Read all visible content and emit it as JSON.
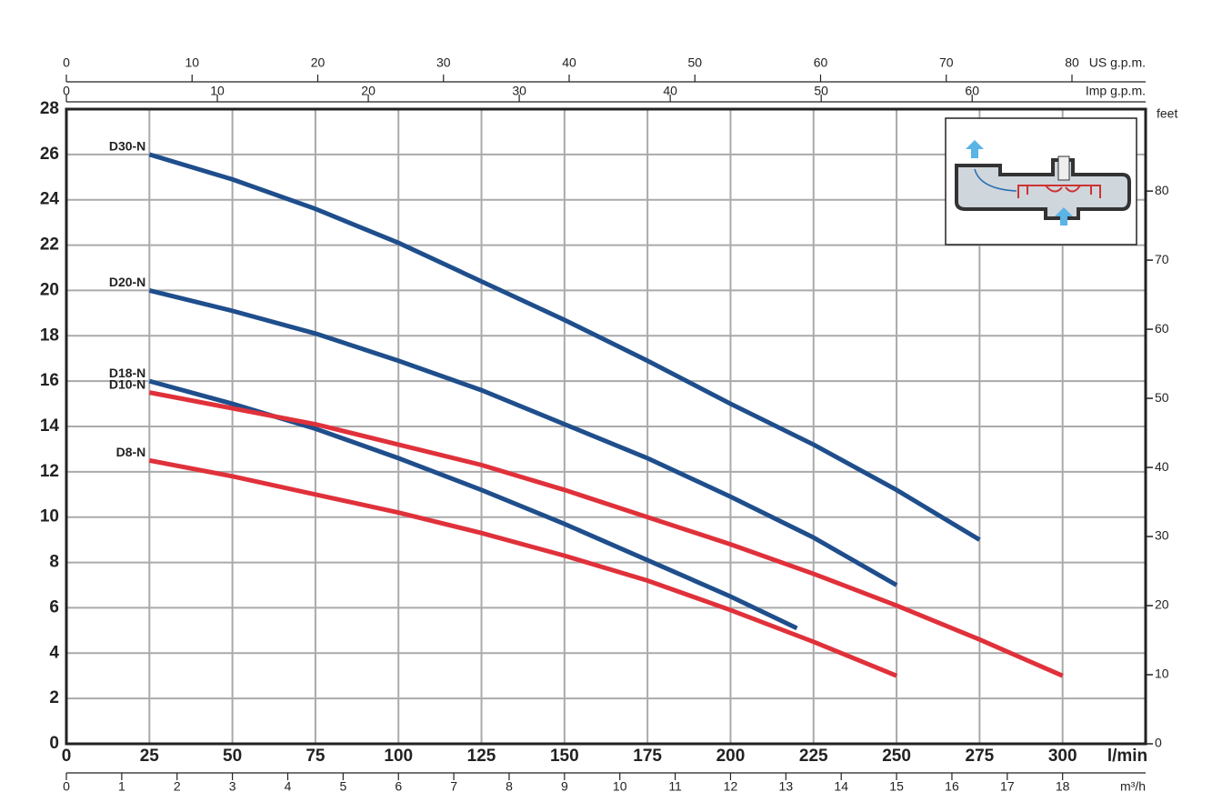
{
  "chart_data": {
    "type": "line",
    "x_label": "l/min",
    "y2_label": "feet",
    "xlim": [
      0,
      325
    ],
    "xticks": [
      0,
      25,
      50,
      75,
      100,
      125,
      150,
      175,
      200,
      225,
      250,
      275,
      300
    ],
    "ylim": [
      0,
      28
    ],
    "yticks": [
      0,
      2,
      4,
      6,
      8,
      10,
      12,
      14,
      16,
      18,
      20,
      22,
      24,
      26,
      28
    ],
    "y2lim": [
      0,
      91.86
    ],
    "y2ticks": [
      0,
      10,
      20,
      30,
      40,
      50,
      60,
      70,
      80
    ],
    "grid": true,
    "secondary_x_axes": [
      {
        "label": "m³/h",
        "position": "bottom",
        "lim": [
          0,
          19.5
        ],
        "ticks": [
          0,
          1,
          2,
          3,
          4,
          5,
          6,
          7,
          8,
          9,
          10,
          11,
          12,
          13,
          14,
          15,
          16,
          17,
          18
        ]
      },
      {
        "label": "US g.p.m.",
        "position": "top",
        "lim": [
          0,
          85.86
        ],
        "ticks": [
          0,
          10,
          20,
          30,
          40,
          50,
          60,
          70,
          80
        ]
      },
      {
        "label": "Imp g.p.m.",
        "position": "top",
        "lim": [
          0,
          71.49
        ],
        "ticks": [
          0,
          10,
          20,
          30,
          40,
          50,
          60
        ]
      }
    ],
    "series": [
      {
        "name": "D30-N",
        "color": "#1f4e8c",
        "x": [
          25,
          50,
          75,
          100,
          125,
          150,
          175,
          200,
          225,
          250,
          275
        ],
        "values": [
          26,
          24.9,
          23.6,
          22.1,
          20.4,
          18.7,
          16.9,
          15.0,
          13.2,
          11.2,
          9.0
        ]
      },
      {
        "name": "D20-N",
        "color": "#1f4e8c",
        "x": [
          25,
          50,
          75,
          100,
          125,
          150,
          175,
          200,
          225,
          250
        ],
        "values": [
          20,
          19.1,
          18.1,
          16.9,
          15.6,
          14.1,
          12.6,
          10.9,
          9.1,
          7.0
        ]
      },
      {
        "name": "D18-N",
        "color": "#1f4e8c",
        "x": [
          25,
          50,
          75,
          100,
          125,
          150,
          175,
          200,
          220
        ],
        "values": [
          16,
          15.0,
          13.9,
          12.6,
          11.2,
          9.7,
          8.1,
          6.5,
          5.1
        ]
      },
      {
        "name": "D10-N",
        "color": "#e0313b",
        "x": [
          25,
          50,
          75,
          100,
          125,
          150,
          175,
          200,
          225,
          250,
          275,
          300
        ],
        "values": [
          15.5,
          14.8,
          14.1,
          13.2,
          12.3,
          11.2,
          10.0,
          8.8,
          7.5,
          6.1,
          4.6,
          3.0
        ]
      },
      {
        "name": "D8-N",
        "color": "#e0313b",
        "x": [
          25,
          50,
          75,
          100,
          125,
          150,
          175,
          200,
          225,
          250
        ],
        "values": [
          12.5,
          11.8,
          11.0,
          10.2,
          9.3,
          8.3,
          7.2,
          5.9,
          4.5,
          3.0
        ]
      }
    ]
  }
}
